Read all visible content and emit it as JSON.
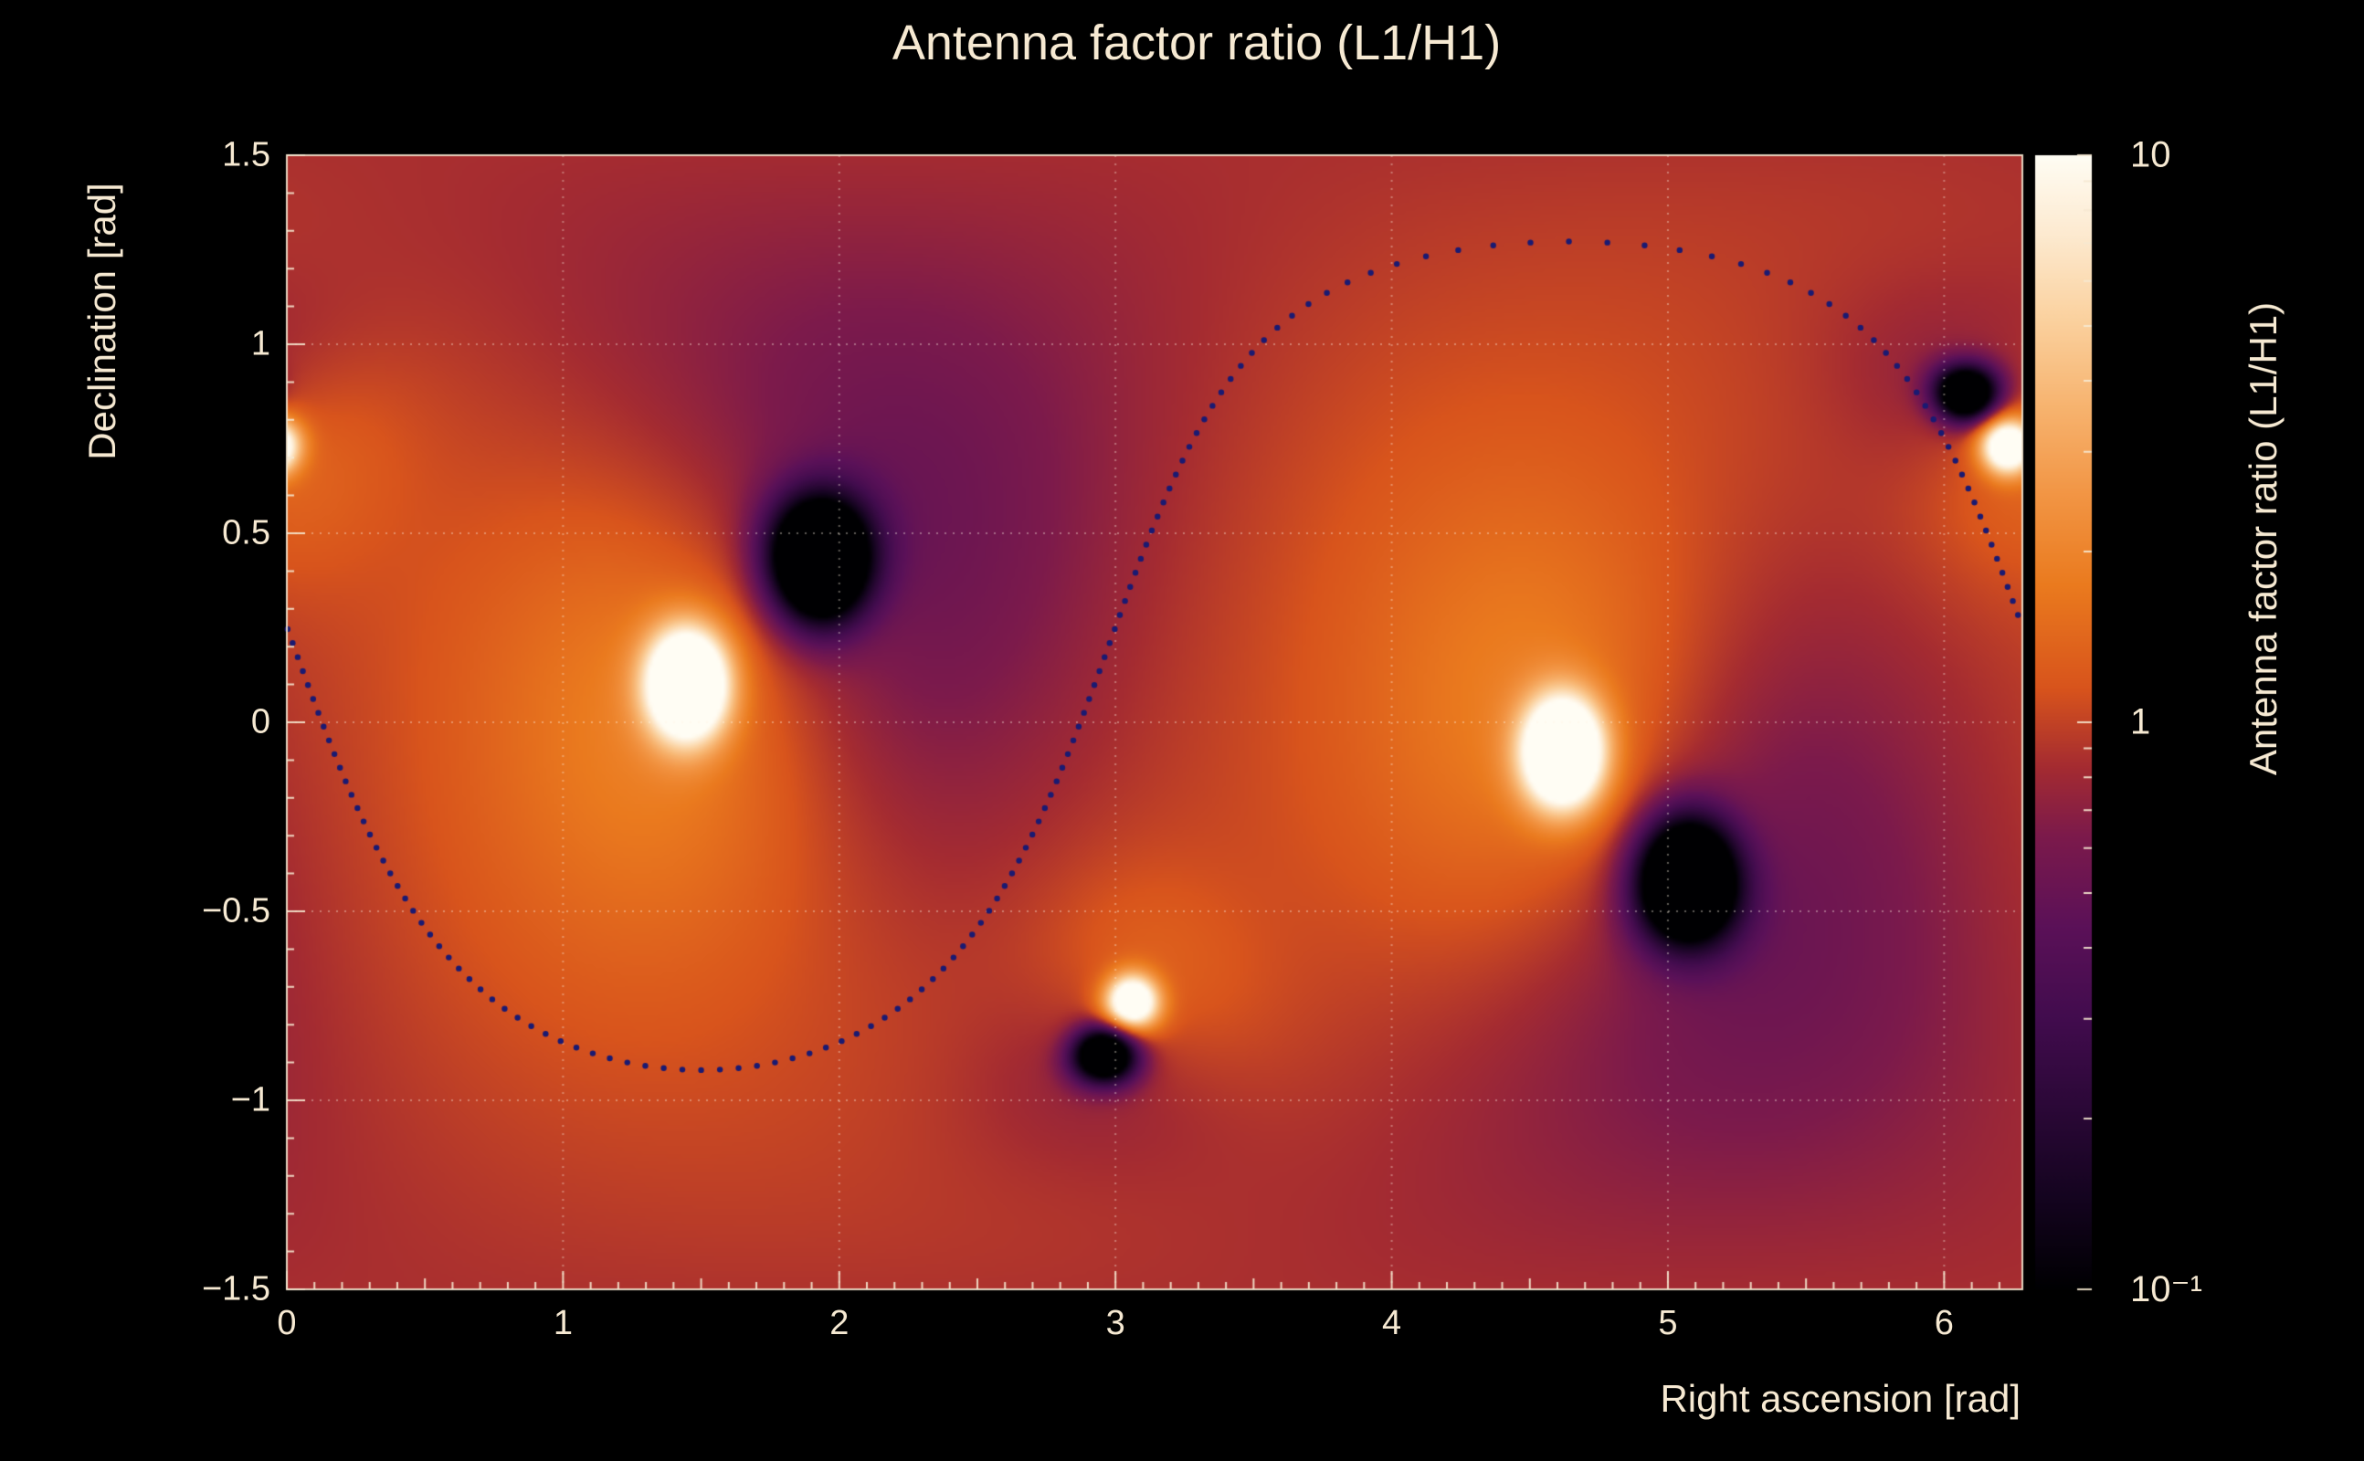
{
  "colors": {
    "background": "#000000",
    "text": "#f6e9d2",
    "frame": "rgba(246,233,210,0.9)",
    "grid": "rgba(255,245,228,0.38)",
    "ring": "#1a1a72"
  },
  "chart_data": {
    "type": "heatmap",
    "title": "Antenna factor ratio (L1/H1)",
    "xlabel": "Right ascension [rad]",
    "ylabel": "Declination [rad]",
    "zlabel": "Antenna factor ratio (L1/H1)",
    "x_range": [
      0,
      6.2832
    ],
    "y_range": [
      -1.5,
      1.5
    ],
    "z_range": [
      0.1,
      10
    ],
    "z_scale": "log10",
    "grid": true,
    "x_ticks": [
      0,
      1,
      2,
      3,
      4,
      5,
      6
    ],
    "x_tick_labels": [
      "0",
      "1",
      "2",
      "3",
      "4",
      "5",
      "6"
    ],
    "y_ticks": [
      1.5,
      1,
      0.5,
      0,
      -0.5,
      -1,
      -1.5
    ],
    "y_tick_labels": [
      "1.5",
      "1",
      "0.5",
      "0",
      "−0.5",
      "−1",
      "−1.5"
    ],
    "colorbar_ticks": [
      {
        "value": 10,
        "label": "10"
      },
      {
        "value": 1,
        "label": "1"
      },
      {
        "value": 0.1,
        "label": "10⁻¹"
      }
    ],
    "background_log10_ratio": 0.06,
    "peaks": [
      {
        "ra": 1.45,
        "dec": 0.1,
        "core_amp": 2.0,
        "core_sigma": 0.1,
        "halo_amp": 0.5,
        "halo_sigma": 0.5,
        "wide_amp": 0.12,
        "wide_sigma": 1.3
      },
      {
        "ra": 4.62,
        "dec": -0.08,
        "core_amp": 2.0,
        "core_sigma": 0.1,
        "halo_amp": 0.5,
        "halo_sigma": 0.5,
        "wide_amp": 0.12,
        "wide_sigma": 1.3
      },
      {
        "ra": 3.06,
        "dec": -0.74,
        "core_amp": 1.5,
        "core_sigma": 0.05,
        "halo_amp": 0.25,
        "halo_sigma": 0.22,
        "wide_amp": 0,
        "wide_sigma": 1
      },
      {
        "ra": 6.23,
        "dec": 0.73,
        "core_amp": 1.5,
        "core_sigma": 0.05,
        "halo_amp": 0.25,
        "halo_sigma": 0.22,
        "wide_amp": 0,
        "wide_sigma": 1
      }
    ],
    "nulls": [
      {
        "ra": 1.93,
        "dec": 0.43,
        "core_amp": 2.2,
        "core_sigma": 0.11,
        "halo_amp": 0.5,
        "halo_sigma": 0.65,
        "wide_amp": 0.12,
        "wide_sigma": 1.3
      },
      {
        "ra": 5.07,
        "dec": -0.42,
        "core_amp": 2.2,
        "core_sigma": 0.11,
        "halo_amp": 0.5,
        "halo_sigma": 0.65,
        "wide_amp": 0.12,
        "wide_sigma": 1.3
      },
      {
        "ra": 2.96,
        "dec": -0.88,
        "core_amp": 1.7,
        "core_sigma": 0.05,
        "halo_amp": 0.25,
        "halo_sigma": 0.2,
        "wide_amp": 0,
        "wide_sigma": 1
      },
      {
        "ra": 6.08,
        "dec": 0.87,
        "core_amp": 1.7,
        "core_sigma": 0.05,
        "halo_amp": 0.25,
        "halo_sigma": 0.2,
        "wide_amp": 0,
        "wide_sigma": 1
      }
    ],
    "localization_ring": {
      "axis_ra": 1.5,
      "axis_dec": 0.475,
      "radius": 1.395,
      "n_dots": 150,
      "dot_radius_px": 3.2
    },
    "colormap_stops": [
      [
        0.0,
        "#000002"
      ],
      [
        0.08,
        "#14041f"
      ],
      [
        0.16,
        "#2b0837"
      ],
      [
        0.24,
        "#420c4e"
      ],
      [
        0.32,
        "#5b1158"
      ],
      [
        0.4,
        "#7c1a4b"
      ],
      [
        0.46,
        "#a42b31"
      ],
      [
        0.53,
        "#d8541c"
      ],
      [
        0.62,
        "#ea7a1e"
      ],
      [
        0.7,
        "#f29544"
      ],
      [
        0.78,
        "#f7b470"
      ],
      [
        0.86,
        "#fbd3a2"
      ],
      [
        0.93,
        "#fdead0"
      ],
      [
        1.0,
        "#fffdf4"
      ]
    ]
  }
}
